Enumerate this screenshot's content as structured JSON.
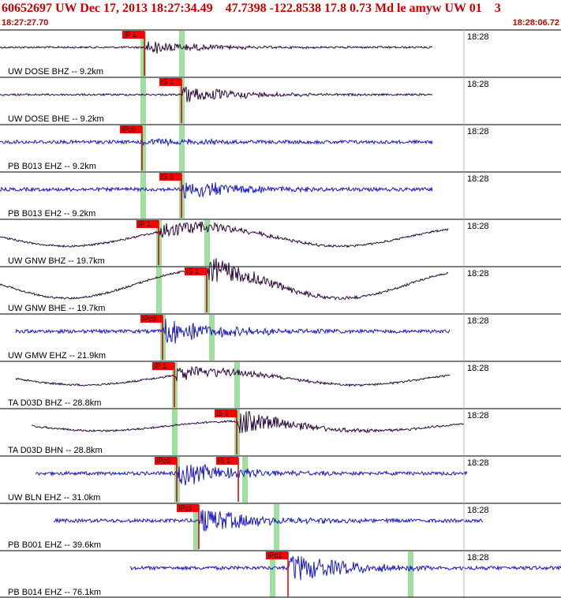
{
  "header": {
    "event_line": "60652697 UW Dec 17, 2013 18:27:34.49    47.7398 -122.8538 17.8 0.73 Md le amyw UW 01    3",
    "window_start": "18:27:27.70",
    "window_end": "18:28:06.72"
  },
  "colors": {
    "header_text": "#cc0000",
    "trace_vertical_short_period": "#1a1acc",
    "trace_broadband": "#2b0a3d",
    "pick_box": "#ff0000",
    "phase_window": "#9fdf9f",
    "separator": "#000000"
  },
  "chart_data": {
    "type": "seismogram",
    "x_axis": "time",
    "start_time": "18:27:27.70",
    "end_time": "18:28:06.72",
    "traces": [
      {
        "label": "UW DOSE BHZ -- 9.2km",
        "time_label": "18:28",
        "picks": [
          "IP 1"
        ],
        "color": "broadband"
      },
      {
        "label": "UW DOSE BHE -- 9.2km",
        "time_label": "18:28",
        "picks": [
          "IS 1"
        ],
        "color": "broadband"
      },
      {
        "label": "PB B013 EHZ -- 9.2km",
        "time_label": "18:28",
        "picks": [
          "IPc0"
        ],
        "color": "short_period"
      },
      {
        "label": "PB B013 EH2 -- 9.2km",
        "time_label": "18:28",
        "picks": [
          "IS 0"
        ],
        "color": "short_period"
      },
      {
        "label": "UW GNW BHZ -- 19.7km",
        "time_label": "18:28",
        "picks": [
          "IP 1"
        ],
        "color": "broadband"
      },
      {
        "label": "UW GNW BHE -- 19.7km",
        "time_label": "18:28",
        "picks": [
          "IS 1"
        ],
        "color": "broadband"
      },
      {
        "label": "UW GMW EHZ -- 21.9km",
        "time_label": "18:28",
        "picks": [
          "IPc0"
        ],
        "color": "short_period"
      },
      {
        "label": "TA D03D BHZ -- 28.8km",
        "time_label": "18:28",
        "picks": [
          "IP 1"
        ],
        "color": "broadband"
      },
      {
        "label": "TA D03D BHN -- 28.8km",
        "time_label": "18:28",
        "picks": [
          "IS 1"
        ],
        "color": "broadband"
      },
      {
        "label": "UW BLN EHZ -- 31.0km",
        "time_label": "18:28",
        "picks": [
          "IPc0",
          "IS 1"
        ],
        "color": "short_period"
      },
      {
        "label": "PB B001 EHZ -- 39.6km",
        "time_label": "18:28",
        "picks": [
          "IPc1"
        ],
        "color": "short_period"
      },
      {
        "label": "PB B014 EHZ -- 76.1km",
        "time_label": "18:28",
        "picks": [
          "IPd1"
        ],
        "color": "short_period"
      }
    ]
  }
}
